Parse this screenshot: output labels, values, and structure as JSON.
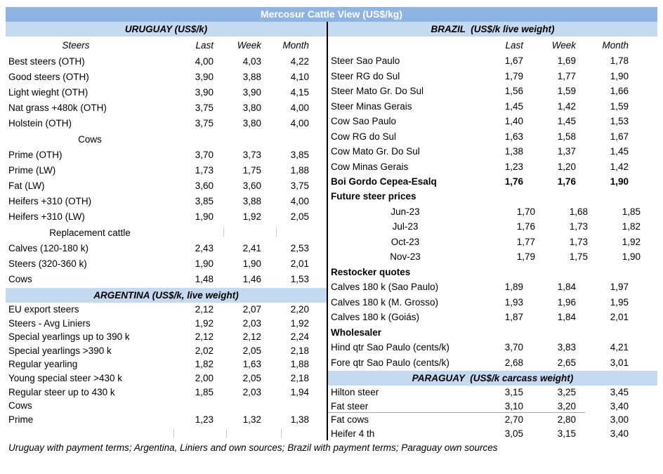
{
  "title": "Mercosur Cattle View (US$/kg)",
  "columns": [
    "Last",
    "Week",
    "Month"
  ],
  "footer": "Uruguay with payment terms; Argentina, Liniers and own sources; Brazil with payment terms; Paraguay own sources",
  "colors": {
    "title_bg": "#8DB4E2",
    "section_bg": "#C5D9F1",
    "title_text": "#FFFFFF",
    "body_text": "#000000",
    "divider": "#000000"
  },
  "left": {
    "uruguay": {
      "header": "URUGUAY (US$/k)",
      "col_label": "Steers",
      "rows": [
        {
          "label": "Best steers (OTH)",
          "last": "4,00",
          "week": "4,03",
          "month": "4,22"
        },
        {
          "label": "Good steers (OTH)",
          "last": "3,90",
          "week": "3,88",
          "month": "4,10"
        },
        {
          "label": "Light wieght (OTH)",
          "last": "3,90",
          "week": "3,90",
          "month": "4,15"
        },
        {
          "label": "Nat grass +480k (OTH)",
          "last": "3,75",
          "week": "3,80",
          "month": "4,00"
        },
        {
          "label": "Holstein (OTH)",
          "last": "3,75",
          "week": "3,80",
          "month": "4,00"
        },
        {
          "label": "Cows",
          "style": "center"
        },
        {
          "label": "Prime (OTH)",
          "last": "3,70",
          "week": "3,73",
          "month": "3,85"
        },
        {
          "label": "Prime (LW)",
          "last": "1,73",
          "week": "1,75",
          "month": "1,88"
        },
        {
          "label": "Fat (LW)",
          "last": "3,60",
          "week": "3,60",
          "month": "3,75"
        },
        {
          "label": "Heifers +310 (OTH)",
          "last": "3,85",
          "week": "3,88",
          "month": "4,00"
        },
        {
          "label": "Heifers +310 (LW)",
          "last": "1,90",
          "week": "1,92",
          "month": "2,05"
        },
        {
          "label": "Replacement cattle",
          "style": "center ticks2"
        },
        {
          "label": "Calves (120-180 k)",
          "last": "2,43",
          "week": "2,41",
          "month": "2,53"
        },
        {
          "label": "Steers (320-360 k)",
          "last": "1,90",
          "week": "1,90",
          "month": "2,01"
        },
        {
          "label": "Cows",
          "last": "1,48",
          "week": "1,46",
          "month": "1,53"
        }
      ]
    },
    "argentina": {
      "header": "ARGENTINA (US$/k, live weight)",
      "rows": [
        {
          "label": "EU export steers",
          "last": "2,12",
          "week": "2,07",
          "month": "2,20"
        },
        {
          "label": "Steers - Avg Liniers",
          "last": "1,92",
          "week": "2,03",
          "month": "1,92"
        },
        {
          "label": "Special yearlings up to 390 k",
          "last": "2,12",
          "week": "2,12",
          "month": "2,24"
        },
        {
          "label": "Special yearlings >390 k",
          "last": "2,02",
          "week": "2,05",
          "month": "2,18"
        },
        {
          "label": "Regular yearling",
          "last": "1,82",
          "week": "1,63",
          "month": "1,88"
        },
        {
          "label": "Young special steer >430 k",
          "last": "2,00",
          "week": "2,05",
          "month": "2,18"
        },
        {
          "label": "Regular steer up to 430 k",
          "last": "1,85",
          "week": "2,03",
          "month": "1,94"
        },
        {
          "label": "Cows"
        },
        {
          "label": "Prime",
          "last": "1,23",
          "week": "1,32",
          "month": "1,38"
        },
        {
          "label": "",
          "style": "ticks3"
        }
      ]
    }
  },
  "right": {
    "brazil": {
      "header": "BRAZIL  (US$/k live weight)",
      "rows": [
        {
          "label": "Steer Sao Paulo",
          "last": "1,67",
          "week": "1,69",
          "month": "1,78"
        },
        {
          "label": "Steer RG do Sul",
          "last": "1,79",
          "week": "1,77",
          "month": "1,90"
        },
        {
          "label": "Steer Mato Gr. Do Sul",
          "last": "1,56",
          "week": "1,59",
          "month": "1,66"
        },
        {
          "label": "Steer Minas Gerais",
          "last": "1,45",
          "week": "1,42",
          "month": "1,59"
        },
        {
          "label": "Cow Sao Paulo",
          "last": "1,40",
          "week": "1,45",
          "month": "1,53"
        },
        {
          "label": "Cow RG do Sul",
          "last": "1,63",
          "week": "1,58",
          "month": "1,67"
        },
        {
          "label": "Cow Mato Gr. Do Sul",
          "last": "1,38",
          "week": "1,37",
          "month": "1,45"
        },
        {
          "label": "Cow Minas Gerais",
          "last": "1,23",
          "week": "1,20",
          "month": "1,42"
        },
        {
          "label": "Boi Gordo Cepea-Esalq",
          "last": "1,76",
          "week": "1,76",
          "month": "1,90",
          "style": "boldrow"
        },
        {
          "label": "Future steer prices",
          "style": "boldlabel"
        },
        {
          "label": "Jun-23",
          "last": "1,70",
          "week": "1,68",
          "month": "1,85",
          "style": "monthcenter"
        },
        {
          "label": "Jul-23",
          "last": "1,76",
          "week": "1,73",
          "month": "1,82",
          "style": "monthcenter"
        },
        {
          "label": "Oct-23",
          "last": "1,77",
          "week": "1,73",
          "month": "1,92",
          "style": "monthcenter"
        },
        {
          "label": "Nov-23",
          "last": "1,79",
          "week": "1,75",
          "month": "1,90",
          "style": "monthcenter"
        },
        {
          "label": "Restocker quotes",
          "style": "boldlabel"
        },
        {
          "label": "Calves 180 k (Sao Paulo)",
          "last": "1,89",
          "week": "1,84",
          "month": "1,97"
        },
        {
          "label": "Calves 180 k (M. Grosso)",
          "last": "1,93",
          "week": "1,96",
          "month": "1,95"
        },
        {
          "label": "Calves 180 k (Goiás)",
          "last": "1,87",
          "week": "1,84",
          "month": "2,01"
        },
        {
          "label": "Wholesaler",
          "style": "boldlabel"
        },
        {
          "label": "Hind qtr Sao Paulo (cents/k)",
          "last": "3,70",
          "week": "3,83",
          "month": "4,21"
        },
        {
          "label": "Fore qtr Sao Paulo (cents/k)",
          "last": "2,68",
          "week": "2,65",
          "month": "3,01"
        }
      ]
    },
    "paraguay": {
      "header": "PARAGUAY  (US$/k carcass weight)",
      "rows": [
        {
          "label": "Hilton steer",
          "last": "3,15",
          "week": "3,25",
          "month": "3,45"
        },
        {
          "label": "Fat steer",
          "last": "3,10",
          "week": "3,20",
          "month": "3,40",
          "style": "underline"
        },
        {
          "label": "Fat cows",
          "last": "2,70",
          "week": "2,80",
          "month": "3,00"
        },
        {
          "label": "Heifer 4 th",
          "last": "3,05",
          "week": "3,15",
          "month": "3,40"
        }
      ]
    }
  }
}
